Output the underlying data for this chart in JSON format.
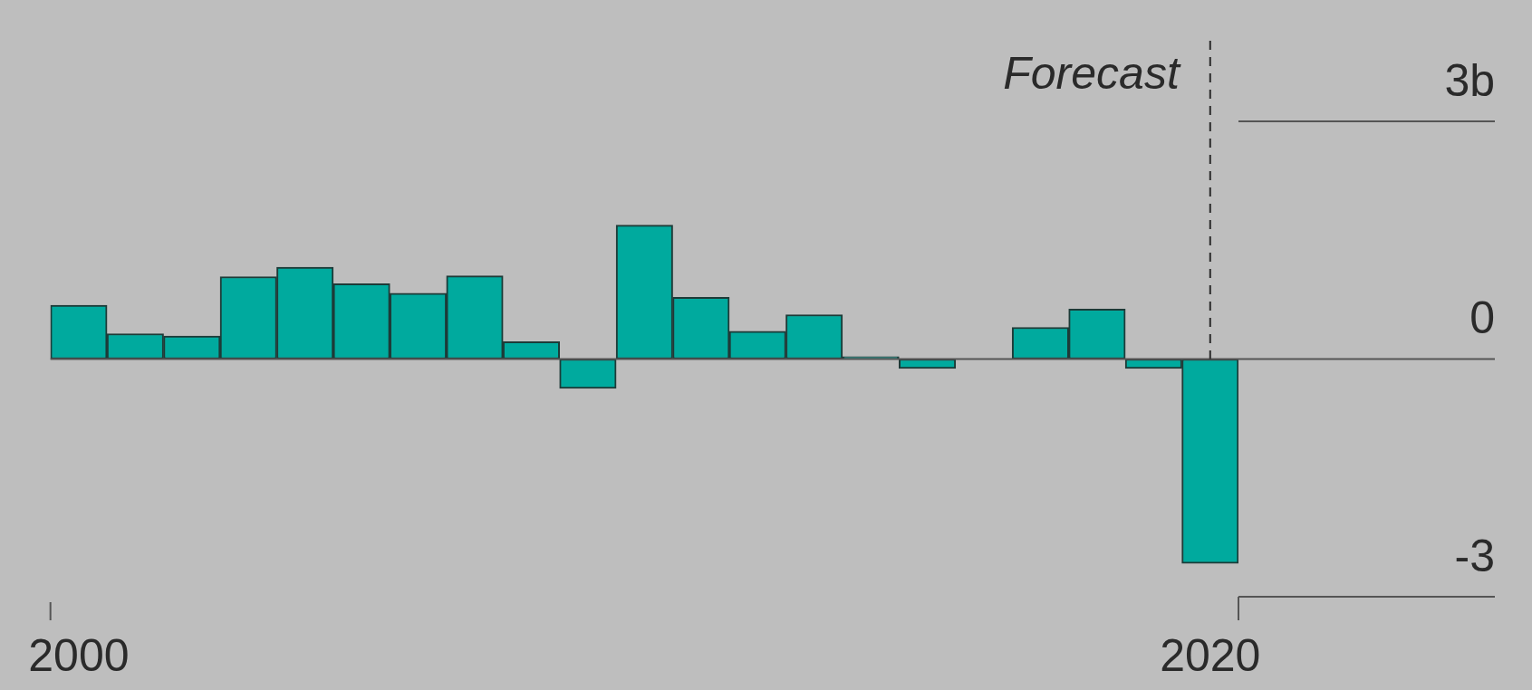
{
  "chart_data": {
    "type": "bar",
    "categories": [
      "2000",
      null,
      null,
      null,
      null,
      null,
      null,
      null,
      null,
      null,
      null,
      null,
      null,
      null,
      null,
      null,
      null,
      null,
      null,
      null,
      "2020"
    ],
    "values": [
      0.68,
      0.32,
      0.29,
      1.04,
      1.16,
      0.95,
      0.83,
      1.05,
      0.22,
      -0.37,
      1.69,
      0.78,
      0.35,
      0.56,
      0.03,
      -0.12,
      0,
      0.4,
      0.63,
      -0.12,
      -2.58
    ],
    "color": "#00aa9e",
    "ylim": [
      -3,
      3
    ],
    "yticks": [
      {
        "value": 3,
        "label": "3b"
      },
      0,
      -3
    ],
    "ref_lines": [
      {
        "axis": "x",
        "value": "2020",
        "label": "Forecast",
        "line_style": "dashed"
      }
    ],
    "grid": "y",
    "legend": false
  }
}
